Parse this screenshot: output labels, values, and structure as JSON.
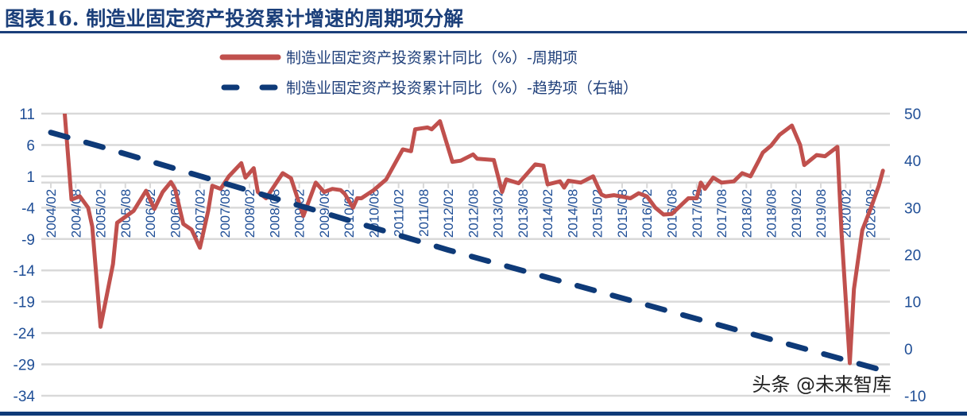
{
  "title": "图表16.  制造业固定资产投资累计增速的周期项分解",
  "watermark": "头条 @未来智库",
  "chart_data": {
    "type": "line",
    "title": "图表16.  制造业固定资产投资累计增速的周期项分解",
    "legend_placement": "top",
    "grid": true,
    "x_ticks": [
      "2004/02",
      "2004/08",
      "2005/02",
      "2005/08",
      "2006/02",
      "2006/08",
      "2007/02",
      "2007/08",
      "2008/02",
      "2008/08",
      "2009/02",
      "2009/08",
      "2010/02",
      "2010/08",
      "2011/02",
      "2011/08",
      "2012/02",
      "2012/08",
      "2013/02",
      "2013/08",
      "2014/02",
      "2014/08",
      "2015/02",
      "2015/08",
      "2016/02",
      "2016/08",
      "2017/02",
      "2017/08",
      "2018/02",
      "2018/08",
      "2019/02",
      "2019/08",
      "2020/02",
      "2020/08"
    ],
    "y_left": {
      "range": [
        -34,
        11
      ],
      "ticks": [
        11,
        6,
        1,
        -4,
        -9,
        -14,
        -19,
        -24,
        -29,
        -34
      ]
    },
    "y_right": {
      "range": [
        -10,
        50
      ],
      "ticks": [
        50,
        40,
        30,
        20,
        10,
        0,
        -10
      ]
    },
    "series": [
      {
        "name": "制造业固定资产投资累计同比（%）-周期项",
        "axis": "left",
        "color": "#c0504d",
        "style": "solid",
        "points": [
          [
            "2004/05",
            14
          ],
          [
            "2004/07",
            -2.7
          ],
          [
            "2004/09",
            -2.2
          ],
          [
            "2004/11",
            -4
          ],
          [
            "2004/12",
            -7
          ],
          [
            "2005/02",
            -23
          ],
          [
            "2005/05",
            -13
          ],
          [
            "2005/06",
            -6.4
          ],
          [
            "2005/10",
            -4.5
          ],
          [
            "2006/01",
            -1.3
          ],
          [
            "2006/03",
            -4.2
          ],
          [
            "2006/05",
            -1.5
          ],
          [
            "2006/07",
            0.1
          ],
          [
            "2006/08",
            -1
          ],
          [
            "2006/10",
            -6.6
          ],
          [
            "2006/12",
            -7.5
          ],
          [
            "2007/02",
            -10.4
          ],
          [
            "2007/04",
            -4.5
          ],
          [
            "2007/05",
            -0.5
          ],
          [
            "2007/07",
            -1
          ],
          [
            "2007/09",
            1
          ],
          [
            "2007/12",
            3.1
          ],
          [
            "2008/01",
            0.8
          ],
          [
            "2008/03",
            2.3
          ],
          [
            "2008/04",
            -1.5
          ],
          [
            "2008/06",
            -2.5
          ],
          [
            "2008/10",
            1.5
          ],
          [
            "2008/12",
            0.7
          ],
          [
            "2009/03",
            -5.3
          ],
          [
            "2009/06",
            0
          ],
          [
            "2009/08",
            -1.5
          ],
          [
            "2009/10",
            -1
          ],
          [
            "2009/12",
            -1.2
          ],
          [
            "2010/01",
            -1.8
          ],
          [
            "2010/03",
            -4
          ],
          [
            "2010/04",
            -2.5
          ],
          [
            "2010/05",
            -2.5
          ],
          [
            "2010/08",
            -1.2
          ],
          [
            "2010/11",
            0.5
          ],
          [
            "2011/03",
            5.3
          ],
          [
            "2011/05",
            5
          ],
          [
            "2011/06",
            8.5
          ],
          [
            "2011/09",
            8.8
          ],
          [
            "2011/10",
            8.5
          ],
          [
            "2011/12",
            9.8
          ],
          [
            "2012/03",
            3.3
          ],
          [
            "2012/05",
            3.5
          ],
          [
            "2012/08",
            4.5
          ],
          [
            "2012/09",
            3.8
          ],
          [
            "2013/01",
            3.6
          ],
          [
            "2013/03",
            -1.5
          ],
          [
            "2013/04",
            0.5
          ],
          [
            "2013/07",
            -0.1
          ],
          [
            "2013/11",
            2.9
          ],
          [
            "2014/01",
            2.7
          ],
          [
            "2014/02",
            -0.3
          ],
          [
            "2014/05",
            0.2
          ],
          [
            "2014/06",
            -0.8
          ],
          [
            "2014/07",
            0.3
          ],
          [
            "2014/10",
            0
          ],
          [
            "2015/01",
            1
          ],
          [
            "2015/03",
            -1.9
          ],
          [
            "2015/04",
            -2.2
          ],
          [
            "2015/06",
            -2
          ],
          [
            "2015/10",
            -2.5
          ],
          [
            "2015/12",
            -1.7
          ],
          [
            "2016/02",
            -2.2
          ],
          [
            "2016/04",
            -4
          ],
          [
            "2016/06",
            -5.1
          ],
          [
            "2016/08",
            -5
          ],
          [
            "2016/12",
            -2.5
          ],
          [
            "2017/02",
            -2.5
          ],
          [
            "2017/03",
            0
          ],
          [
            "2017/04",
            -1
          ],
          [
            "2017/06",
            0.8
          ],
          [
            "2017/08",
            0
          ],
          [
            "2017/11",
            0.2
          ],
          [
            "2018/01",
            1.5
          ],
          [
            "2018/03",
            1
          ],
          [
            "2018/05",
            3.5
          ],
          [
            "2018/06",
            4.8
          ],
          [
            "2018/08",
            5.9
          ],
          [
            "2018/10",
            7.6
          ],
          [
            "2019/01",
            9.1
          ],
          [
            "2019/03",
            6
          ],
          [
            "2019/04",
            2.8
          ],
          [
            "2019/07",
            4.4
          ],
          [
            "2019/09",
            4.2
          ],
          [
            "2019/12",
            5.7
          ],
          [
            "2020/01",
            -8
          ],
          [
            "2020/03",
            -28.8
          ],
          [
            "2020/04",
            -17
          ],
          [
            "2020/06",
            -7.6
          ],
          [
            "2020/08",
            -4.2
          ],
          [
            "2020/10",
            -0.5
          ],
          [
            "2020/11",
            1.9
          ]
        ]
      },
      {
        "name": "制造业固定资产投资累计同比（%）-趋势项（右轴）",
        "axis": "right",
        "color": "#0e3a78",
        "style": "dashed",
        "points": [
          [
            "2004/02",
            46
          ],
          [
            "2005/02",
            43
          ],
          [
            "2008/02",
            33.6
          ],
          [
            "2012/02",
            21
          ],
          [
            "2016/02",
            9.3
          ],
          [
            "2020/11",
            -4.6
          ]
        ]
      }
    ]
  }
}
